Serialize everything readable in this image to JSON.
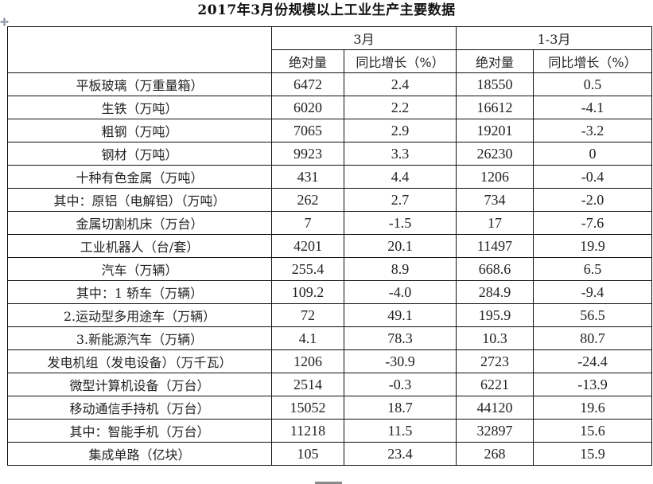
{
  "title": "2017年3月份规模以上工业生产主要数据",
  "icons": {
    "move_handle": "four-way-move-icon"
  },
  "table": {
    "group_headers": {
      "march": "3月",
      "jan_mar": "1-3月"
    },
    "sub_headers": {
      "march_abs": "绝对量",
      "march_yoy": "同比增长（%）",
      "ytd_abs": "绝对量",
      "ytd_yoy": "同比增长（%）"
    },
    "rows": [
      {
        "name": "平板玻璃（万重量箱）",
        "march_abs": "6472",
        "march_yoy": "2.4",
        "ytd_abs": "18550",
        "ytd_yoy": "0.5"
      },
      {
        "name": "生铁（万吨）",
        "march_abs": "6020",
        "march_yoy": "2.2",
        "ytd_abs": "16612",
        "ytd_yoy": "-4.1"
      },
      {
        "name": "粗钢（万吨）",
        "march_abs": "7065",
        "march_yoy": "2.9",
        "ytd_abs": "19201",
        "ytd_yoy": "-3.2"
      },
      {
        "name": "钢材（万吨）",
        "march_abs": "9923",
        "march_yoy": "3.3",
        "ytd_abs": "26230",
        "ytd_yoy": "0"
      },
      {
        "name": "十种有色金属（万吨）",
        "march_abs": "431",
        "march_yoy": "4.4",
        "ytd_abs": "1206",
        "ytd_yoy": "-0.4"
      },
      {
        "name": "其中：原铝（电解铝）（万吨）",
        "march_abs": "262",
        "march_yoy": "2.7",
        "ytd_abs": "734",
        "ytd_yoy": "-2.0"
      },
      {
        "name": "金属切割机床（万台）",
        "march_abs": "7",
        "march_yoy": "-1.5",
        "ytd_abs": "17",
        "ytd_yoy": "-7.6"
      },
      {
        "name": "工业机器人（台/套）",
        "march_abs": "4201",
        "march_yoy": "20.1",
        "ytd_abs": "11497",
        "ytd_yoy": "19.9"
      },
      {
        "name": "汽车（万辆）",
        "march_abs": "255.4",
        "march_yoy": "8.9",
        "ytd_abs": "668.6",
        "ytd_yoy": "6.5"
      },
      {
        "name": "其中：1 轿车（万辆）",
        "march_abs": "109.2",
        "march_yoy": "-4.0",
        "ytd_abs": "284.9",
        "ytd_yoy": "-9.4"
      },
      {
        "name": "2.运动型多用途车（万辆）",
        "march_abs": "72",
        "march_yoy": "49.1",
        "ytd_abs": "195.9",
        "ytd_yoy": "56.5"
      },
      {
        "name": "3.新能源汽车（万辆）",
        "march_abs": "4.1",
        "march_yoy": "78.3",
        "ytd_abs": "10.3",
        "ytd_yoy": "80.7"
      },
      {
        "name": "发电机组（发电设备）（万千瓦）",
        "march_abs": "1206",
        "march_yoy": "-30.9",
        "ytd_abs": "2723",
        "ytd_yoy": "-24.4"
      },
      {
        "name": "微型计算机设备（万台）",
        "march_abs": "2514",
        "march_yoy": "-0.3",
        "ytd_abs": "6221",
        "ytd_yoy": "-13.9"
      },
      {
        "name": "移动通信手持机（万台）",
        "march_abs": "15052",
        "march_yoy": "18.7",
        "ytd_abs": "44120",
        "ytd_yoy": "19.6"
      },
      {
        "name": "其中：智能手机（万台）",
        "march_abs": "11218",
        "march_yoy": "11.5",
        "ytd_abs": "32897",
        "ytd_yoy": "15.6"
      },
      {
        "name": "集成单路（亿块）",
        "march_abs": "105",
        "march_yoy": "23.4",
        "ytd_abs": "268",
        "ytd_yoy": "15.9"
      }
    ]
  }
}
